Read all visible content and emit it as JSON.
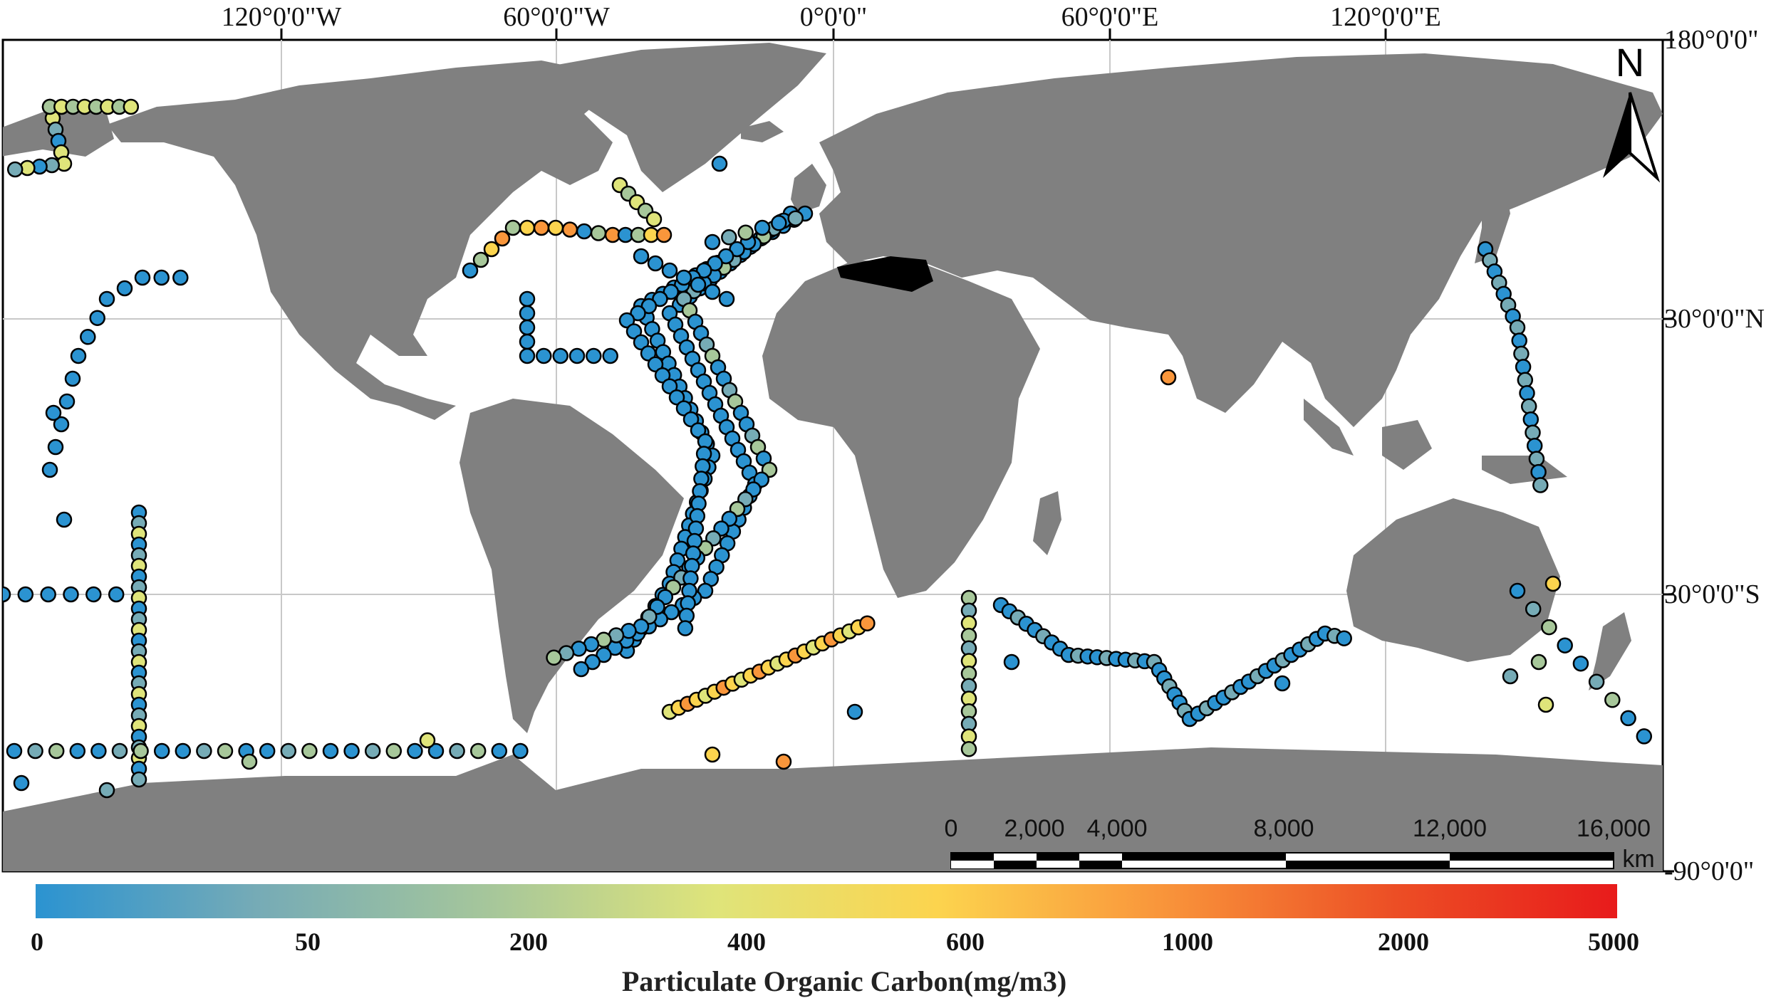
{
  "map": {
    "top_labels": [
      "120°0'0\"W",
      "60°0'0\"W",
      "0°0'0\"",
      "60°0'0\"E",
      "120°0'0\"E"
    ],
    "right_labels": [
      "180°0'0\"",
      "30°0'0\"N",
      "30°0'0\"S",
      "-90°0'0\""
    ],
    "north_arrow": "N",
    "scale_bar": {
      "labels": [
        "0",
        "2,000",
        "4,000",
        "8,000",
        "12,000",
        "16,000"
      ],
      "unit": "km"
    },
    "colors": {
      "land": "#808080",
      "ocean": "#ffffff",
      "grid": "#c8c8c8",
      "marker_outline": "#000000"
    }
  },
  "colorbar": {
    "title": "Particulate Organic Carbon(mg/m3)",
    "labels": [
      "0",
      "50",
      "200",
      "400",
      "600",
      "1000",
      "2000",
      "5000"
    ],
    "colors": [
      "#2b93d1",
      "#76abb6",
      "#a7c79a",
      "#dfe47a",
      "#fcd44e",
      "#f9963b",
      "#ec4e25",
      "#e81b1b"
    ]
  }
}
